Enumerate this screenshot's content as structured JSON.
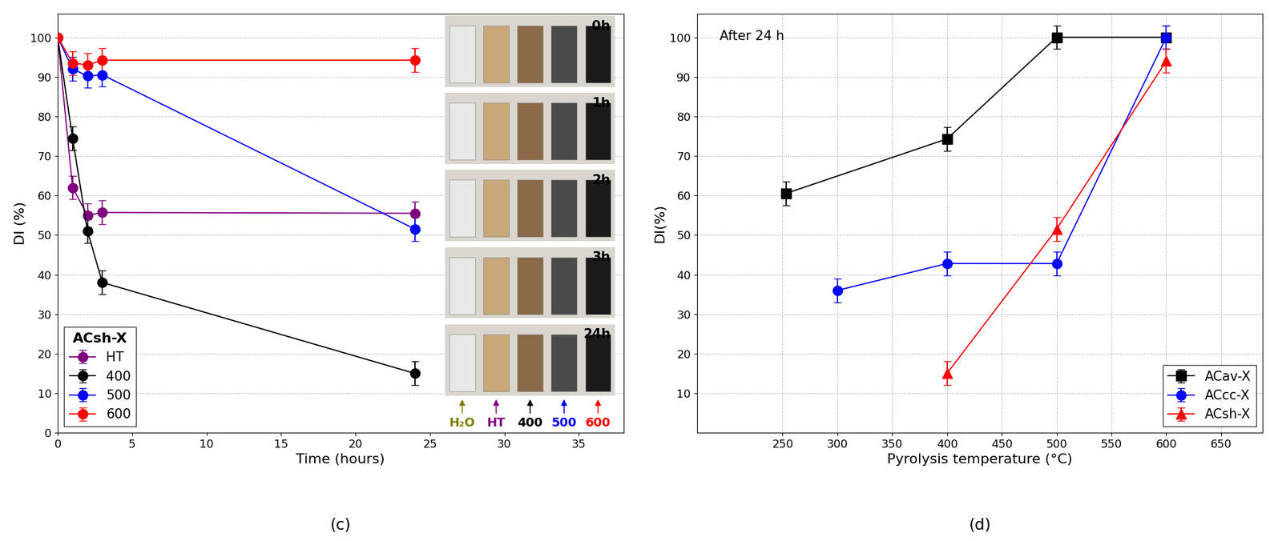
{
  "chart_data": [
    {
      "type": "line",
      "caption": "(c)",
      "x_label": "Time (hours)",
      "y_label": "DI (%)",
      "xlim": [
        0,
        38
      ],
      "xticks": [
        0,
        5,
        10,
        15,
        20,
        25,
        30,
        35
      ],
      "ylim": [
        0,
        106
      ],
      "yticks": [
        0,
        10,
        20,
        30,
        40,
        50,
        60,
        70,
        80,
        90,
        100
      ],
      "grid": "y",
      "legend": "lower left",
      "legend_title": "ACsh-X",
      "series": [
        {
          "name": "HT",
          "color": "#800080",
          "marker": "circle",
          "line_style": "solid",
          "x": [
            0,
            1,
            2,
            3,
            24
          ],
          "values": [
            100,
            62,
            55,
            55.7,
            55.5
          ],
          "errors": [
            0,
            3,
            3,
            3,
            3
          ]
        },
        {
          "name": "400",
          "color": "#000000",
          "marker": "circle",
          "line_style": "solid",
          "x": [
            0,
            1,
            2,
            3,
            24
          ],
          "values": [
            100,
            74.5,
            51,
            38,
            15
          ],
          "errors": [
            0,
            3,
            3,
            3,
            3
          ]
        },
        {
          "name": "500",
          "color": "#0000ff",
          "marker": "circle",
          "line_style": "solid",
          "x": [
            0,
            1,
            2,
            3,
            24
          ],
          "values": [
            100,
            92,
            90.2,
            90.5,
            51.5
          ],
          "errors": [
            0,
            3,
            3,
            3,
            3
          ]
        },
        {
          "name": "600",
          "color": "#ff0000",
          "marker": "circle",
          "line_style": "solid",
          "x": [
            0,
            1,
            2,
            3,
            24
          ],
          "values": [
            100,
            93.5,
            93,
            94.2,
            94.2
          ],
          "errors": [
            0,
            3,
            3,
            3,
            3
          ]
        }
      ],
      "inset": {
        "panels": [
          "0h",
          "1h",
          "2h",
          "3h",
          "24h"
        ],
        "vial_labels": [
          {
            "text": "H₂O",
            "color": "#808000"
          },
          {
            "text": "HT",
            "color": "#800080"
          },
          {
            "text": "400",
            "color": "#000000"
          },
          {
            "text": "500",
            "color": "#0000ff"
          },
          {
            "text": "600",
            "color": "#ff0000"
          }
        ]
      }
    },
    {
      "type": "line",
      "caption": "(d)",
      "x_label": "Pyrolysis temperature (°C)",
      "y_label": "DI(%)",
      "annotations": [
        "After 24 h"
      ],
      "xlim": [
        172,
        688
      ],
      "xticks": [
        250,
        300,
        350,
        400,
        450,
        500,
        550,
        600,
        650
      ],
      "ylim": [
        0,
        106
      ],
      "yticks": [
        10,
        20,
        30,
        40,
        50,
        60,
        70,
        80,
        90,
        100
      ],
      "grid": true,
      "legend": "lower right",
      "series": [
        {
          "name": "ACav-X",
          "color": "#000000",
          "marker": "square",
          "line_style": "solid",
          "x": [
            253,
            400,
            500,
            600
          ],
          "values": [
            60.5,
            74.3,
            100,
            100
          ],
          "errors": [
            3,
            3,
            3,
            3
          ]
        },
        {
          "name": "ACcc-X",
          "color": "#0000ff",
          "marker": "circle",
          "line_style": "solid",
          "x": [
            300,
            400,
            500,
            600
          ],
          "values": [
            36,
            42.8,
            42.8,
            100
          ],
          "errors": [
            3,
            3,
            3,
            3
          ]
        },
        {
          "name": "ACsh-X",
          "color": "#ff0000",
          "marker": "triangle",
          "line_style": "solid",
          "x": [
            400,
            500,
            600
          ],
          "values": [
            15,
            51.5,
            94
          ],
          "errors": [
            3,
            3,
            3
          ]
        }
      ]
    }
  ]
}
